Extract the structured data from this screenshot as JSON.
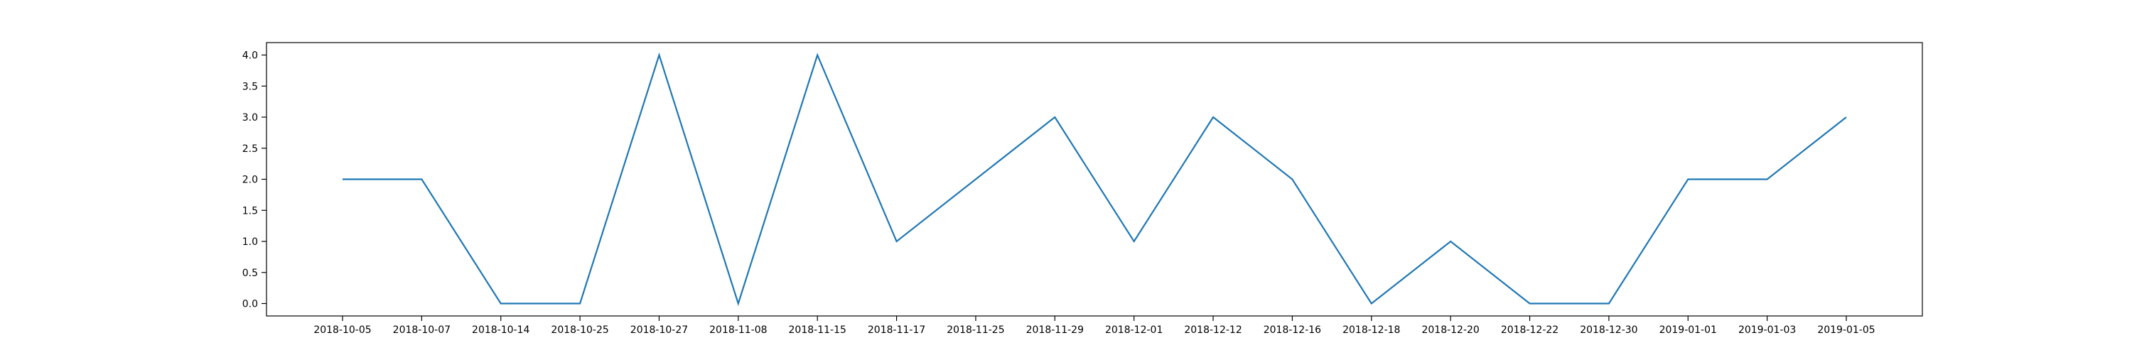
{
  "chart_data": {
    "type": "line",
    "title": "",
    "xlabel": "",
    "ylabel": "",
    "categories": [
      "2018-10-05",
      "2018-10-07",
      "2018-10-14",
      "2018-10-25",
      "2018-10-27",
      "2018-11-08",
      "2018-11-15",
      "2018-11-17",
      "2018-11-25",
      "2018-11-29",
      "2018-12-01",
      "2018-12-12",
      "2018-12-16",
      "2018-12-18",
      "2018-12-20",
      "2018-12-22",
      "2018-12-30",
      "2019-01-01",
      "2019-01-03",
      "2019-01-05"
    ],
    "series": [
      {
        "values": [
          2,
          2,
          0,
          0,
          4,
          0,
          4,
          1,
          2,
          3,
          1,
          3,
          2,
          0,
          1,
          0,
          0,
          2,
          2,
          3
        ],
        "color": "#1f77b4"
      }
    ],
    "ylim": [
      -0.2,
      4.2
    ],
    "yticks": [
      0.0,
      0.5,
      1.0,
      1.5,
      2.0,
      2.5,
      3.0,
      3.5,
      4.0
    ],
    "ytick_labels": [
      "0.0",
      "0.5",
      "1.0",
      "1.5",
      "2.0",
      "2.5",
      "3.0",
      "3.5",
      "4.0"
    ],
    "grid": false,
    "legend": "none"
  }
}
